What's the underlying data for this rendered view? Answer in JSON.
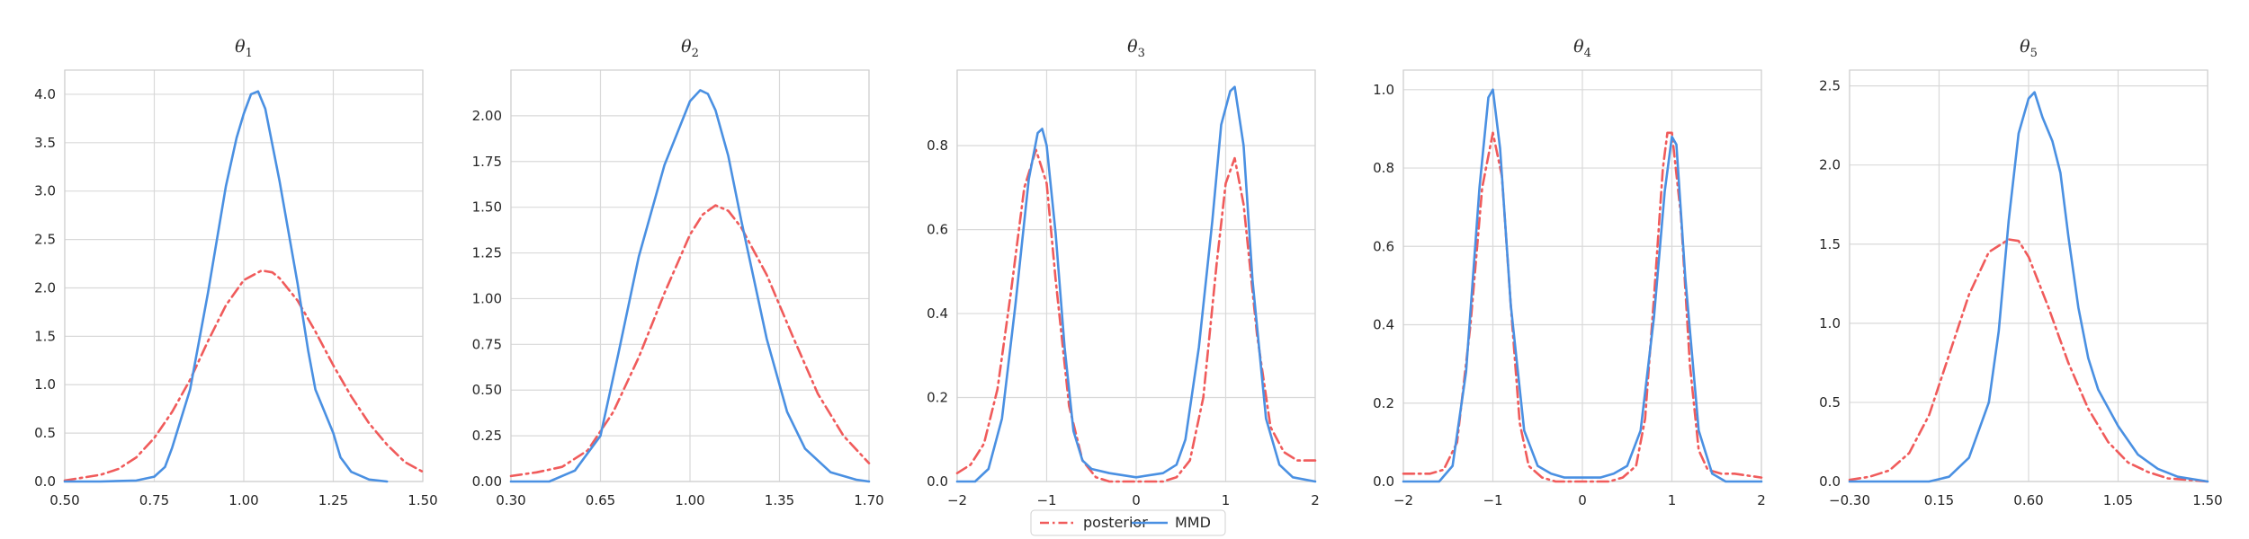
{
  "colors": {
    "posterior": "#f05b5b",
    "mmd": "#4a90e2",
    "grid": "#d9d9d9"
  },
  "legend": {
    "placement": "bottom-center",
    "entries": [
      {
        "label": "posterior",
        "style": "dashdot",
        "color": "#f05b5b"
      },
      {
        "label": "MMD",
        "style": "solid",
        "color": "#4a90e2"
      }
    ]
  },
  "chart_data": [
    {
      "type": "line",
      "title": "θ",
      "title_sub": "1",
      "xlim": [
        0.5,
        1.5
      ],
      "ylim": [
        0,
        4.25
      ],
      "xticks": [
        0.5,
        0.75,
        1.0,
        1.25,
        1.5
      ],
      "xtick_labels": [
        "0.50",
        "0.75",
        "1.00",
        "1.25",
        "1.50"
      ],
      "yticks": [
        0,
        0.5,
        1.0,
        1.5,
        2.0,
        2.5,
        3.0,
        3.5,
        4.0
      ],
      "ytick_labels": [
        "0.0",
        "0.5",
        "1.0",
        "1.5",
        "2.0",
        "2.5",
        "3.0",
        "3.5",
        "4.0"
      ],
      "series": [
        {
          "name": "posterior",
          "style": "dashdot",
          "x": [
            0.5,
            0.55,
            0.6,
            0.65,
            0.7,
            0.75,
            0.8,
            0.85,
            0.9,
            0.95,
            1.0,
            1.05,
            1.08,
            1.1,
            1.15,
            1.2,
            1.25,
            1.3,
            1.35,
            1.4,
            1.45,
            1.5
          ],
          "y": [
            0.01,
            0.04,
            0.07,
            0.13,
            0.25,
            0.45,
            0.72,
            1.05,
            1.45,
            1.82,
            2.08,
            2.18,
            2.16,
            2.1,
            1.87,
            1.55,
            1.2,
            0.88,
            0.6,
            0.38,
            0.2,
            0.1
          ]
        },
        {
          "name": "MMD",
          "style": "solid",
          "x": [
            0.5,
            0.6,
            0.7,
            0.75,
            0.78,
            0.8,
            0.85,
            0.9,
            0.95,
            0.98,
            1.0,
            1.02,
            1.04,
            1.06,
            1.1,
            1.15,
            1.18,
            1.2,
            1.25,
            1.27,
            1.3,
            1.35,
            1.4
          ],
          "y": [
            0.0,
            0.0,
            0.01,
            0.05,
            0.15,
            0.35,
            0.95,
            1.95,
            3.05,
            3.55,
            3.8,
            4.0,
            4.03,
            3.85,
            3.1,
            2.05,
            1.35,
            0.95,
            0.5,
            0.25,
            0.1,
            0.02,
            0.0
          ]
        }
      ]
    },
    {
      "type": "line",
      "title": "θ",
      "title_sub": "2",
      "xlim": [
        0.3,
        1.7
      ],
      "ylim": [
        0,
        2.25
      ],
      "xticks": [
        0.3,
        0.65,
        1.0,
        1.35,
        1.7
      ],
      "xtick_labels": [
        "0.30",
        "0.65",
        "1.00",
        "1.35",
        "1.70"
      ],
      "yticks": [
        0,
        0.25,
        0.5,
        0.75,
        1.0,
        1.25,
        1.5,
        1.75,
        2.0
      ],
      "ytick_labels": [
        "0.00",
        "0.25",
        "0.50",
        "0.75",
        "1.00",
        "1.25",
        "1.50",
        "1.75",
        "2.00"
      ],
      "series": [
        {
          "name": "posterior",
          "style": "dashdot",
          "x": [
            0.3,
            0.4,
            0.5,
            0.6,
            0.7,
            0.8,
            0.9,
            1.0,
            1.05,
            1.1,
            1.15,
            1.2,
            1.3,
            1.4,
            1.5,
            1.6,
            1.7
          ],
          "y": [
            0.03,
            0.05,
            0.08,
            0.17,
            0.38,
            0.68,
            1.03,
            1.35,
            1.46,
            1.51,
            1.48,
            1.39,
            1.13,
            0.8,
            0.48,
            0.25,
            0.1
          ]
        },
        {
          "name": "MMD",
          "style": "solid",
          "x": [
            0.3,
            0.45,
            0.55,
            0.65,
            0.72,
            0.8,
            0.9,
            1.0,
            1.04,
            1.07,
            1.1,
            1.15,
            1.2,
            1.3,
            1.38,
            1.45,
            1.55,
            1.65,
            1.7
          ],
          "y": [
            0.0,
            0.0,
            0.06,
            0.25,
            0.7,
            1.23,
            1.73,
            2.08,
            2.14,
            2.12,
            2.03,
            1.78,
            1.43,
            0.78,
            0.38,
            0.18,
            0.05,
            0.01,
            0.0
          ]
        }
      ]
    },
    {
      "type": "line",
      "title": "θ",
      "title_sub": "3",
      "xlim": [
        -2,
        2
      ],
      "ylim": [
        0,
        0.98
      ],
      "xticks": [
        -2,
        -1,
        0,
        1,
        2
      ],
      "xtick_labels": [
        "−2",
        "−1",
        "0",
        "1",
        "2"
      ],
      "yticks": [
        0,
        0.2,
        0.4,
        0.6,
        0.8
      ],
      "ytick_labels": [
        "0.0",
        "0.2",
        "0.4",
        "0.6",
        "0.8"
      ],
      "series": [
        {
          "name": "posterior",
          "style": "dashdot",
          "x": [
            -2,
            -1.85,
            -1.7,
            -1.55,
            -1.4,
            -1.25,
            -1.12,
            -1.0,
            -0.9,
            -0.75,
            -0.6,
            -0.45,
            -0.3,
            0,
            0.3,
            0.45,
            0.6,
            0.75,
            0.9,
            1.0,
            1.1,
            1.2,
            1.35,
            1.5,
            1.65,
            1.8,
            2.0
          ],
          "y": [
            0.02,
            0.04,
            0.09,
            0.22,
            0.45,
            0.7,
            0.79,
            0.71,
            0.48,
            0.18,
            0.05,
            0.01,
            0.0,
            0.0,
            0.0,
            0.01,
            0.05,
            0.2,
            0.52,
            0.71,
            0.77,
            0.66,
            0.35,
            0.13,
            0.07,
            0.05,
            0.05
          ]
        },
        {
          "name": "MMD",
          "style": "solid",
          "x": [
            -2,
            -1.8,
            -1.65,
            -1.5,
            -1.35,
            -1.2,
            -1.1,
            -1.05,
            -1.0,
            -0.9,
            -0.8,
            -0.7,
            -0.6,
            -0.5,
            -0.3,
            0,
            0.3,
            0.45,
            0.55,
            0.7,
            0.85,
            0.95,
            1.05,
            1.1,
            1.2,
            1.3,
            1.45,
            1.6,
            1.75,
            2.0
          ],
          "y": [
            0.0,
            0.0,
            0.03,
            0.15,
            0.42,
            0.72,
            0.83,
            0.84,
            0.8,
            0.59,
            0.32,
            0.12,
            0.05,
            0.03,
            0.02,
            0.01,
            0.02,
            0.04,
            0.1,
            0.32,
            0.62,
            0.85,
            0.93,
            0.94,
            0.8,
            0.48,
            0.15,
            0.04,
            0.01,
            0.0
          ]
        }
      ]
    },
    {
      "type": "line",
      "title": "θ",
      "title_sub": "4",
      "xlim": [
        -2,
        2
      ],
      "ylim": [
        0,
        1.05
      ],
      "xticks": [
        -2,
        -1,
        0,
        1,
        2
      ],
      "xtick_labels": [
        "−2",
        "−1",
        "0",
        "1",
        "2"
      ],
      "yticks": [
        0,
        0.2,
        0.4,
        0.6,
        0.8,
        1.0
      ],
      "ytick_labels": [
        "0.0",
        "0.2",
        "0.4",
        "0.6",
        "0.8",
        "1.0"
      ],
      "series": [
        {
          "name": "posterior",
          "style": "dashdot",
          "x": [
            -2,
            -1.7,
            -1.55,
            -1.4,
            -1.25,
            -1.12,
            -1.0,
            -0.9,
            -0.8,
            -0.7,
            -0.6,
            -0.45,
            -0.3,
            0,
            0.3,
            0.45,
            0.6,
            0.7,
            0.8,
            0.9,
            0.95,
            1.0,
            1.1,
            1.2,
            1.3,
            1.4,
            1.55,
            1.7,
            2.0
          ],
          "y": [
            0.02,
            0.02,
            0.03,
            0.1,
            0.4,
            0.75,
            0.89,
            0.78,
            0.45,
            0.15,
            0.04,
            0.01,
            0.0,
            0.0,
            0.0,
            0.01,
            0.04,
            0.16,
            0.47,
            0.8,
            0.89,
            0.89,
            0.68,
            0.3,
            0.08,
            0.03,
            0.02,
            0.02,
            0.01
          ]
        },
        {
          "name": "MMD",
          "style": "solid",
          "x": [
            -2,
            -1.6,
            -1.45,
            -1.3,
            -1.15,
            -1.05,
            -1.0,
            -0.92,
            -0.8,
            -0.65,
            -0.5,
            -0.35,
            -0.2,
            0,
            0.2,
            0.35,
            0.5,
            0.65,
            0.8,
            0.92,
            1.0,
            1.05,
            1.15,
            1.3,
            1.45,
            1.6,
            2.0
          ],
          "y": [
            0.0,
            0.0,
            0.04,
            0.28,
            0.75,
            0.98,
            1.0,
            0.85,
            0.45,
            0.13,
            0.04,
            0.02,
            0.01,
            0.01,
            0.01,
            0.02,
            0.04,
            0.13,
            0.42,
            0.74,
            0.88,
            0.86,
            0.52,
            0.13,
            0.02,
            0.0,
            0.0
          ]
        }
      ]
    },
    {
      "type": "line",
      "title": "θ",
      "title_sub": "5",
      "xlim": [
        -0.3,
        1.5
      ],
      "ylim": [
        0,
        2.6
      ],
      "xticks": [
        -0.3,
        0.15,
        0.6,
        1.05,
        1.5
      ],
      "xtick_labels": [
        "−0.30",
        "0.15",
        "0.60",
        "1.05",
        "1.50"
      ],
      "yticks": [
        0,
        0.5,
        1.0,
        1.5,
        2.0,
        2.5
      ],
      "ytick_labels": [
        "0.0",
        "0.5",
        "1.0",
        "1.5",
        "2.0",
        "2.5"
      ],
      "series": [
        {
          "name": "posterior",
          "style": "dashdot",
          "x": [
            -0.3,
            -0.2,
            -0.1,
            0.0,
            0.1,
            0.2,
            0.3,
            0.4,
            0.5,
            0.55,
            0.6,
            0.7,
            0.8,
            0.9,
            1.0,
            1.1,
            1.2,
            1.3,
            1.4,
            1.5
          ],
          "y": [
            0.01,
            0.03,
            0.07,
            0.18,
            0.42,
            0.8,
            1.18,
            1.45,
            1.53,
            1.52,
            1.42,
            1.1,
            0.75,
            0.46,
            0.25,
            0.12,
            0.06,
            0.02,
            0.01,
            0.0
          ]
        },
        {
          "name": "MMD",
          "style": "solid",
          "x": [
            -0.3,
            0.1,
            0.2,
            0.3,
            0.4,
            0.45,
            0.5,
            0.55,
            0.6,
            0.63,
            0.67,
            0.72,
            0.76,
            0.8,
            0.85,
            0.9,
            0.95,
            1.05,
            1.15,
            1.25,
            1.35,
            1.5
          ],
          "y": [
            0.0,
            0.0,
            0.03,
            0.15,
            0.5,
            0.95,
            1.65,
            2.2,
            2.42,
            2.46,
            2.3,
            2.15,
            1.95,
            1.55,
            1.1,
            0.78,
            0.58,
            0.35,
            0.17,
            0.08,
            0.03,
            0.0
          ]
        }
      ]
    }
  ]
}
